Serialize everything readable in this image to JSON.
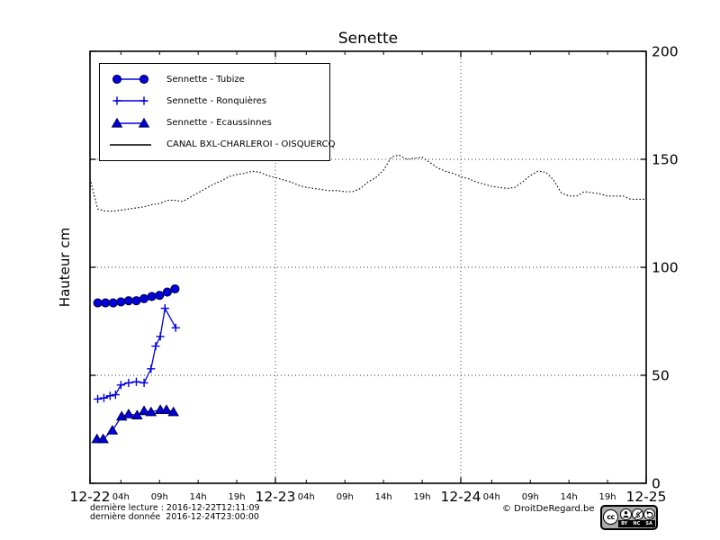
{
  "footer": {
    "line1": "dernière lecture : 2016-12-22T12:11:09",
    "line2": "dernière donnée  2016-12-24T23:00:00",
    "copyright": "© DroitDeRegard.be"
  },
  "license_badge": {
    "cc_label": "cc",
    "nc_symbol": "$",
    "items": [
      "BY",
      "NC",
      "SA"
    ]
  },
  "chart_data": {
    "type": "line",
    "title": "Senette",
    "ylabel": "Hauteur cm",
    "grid": true,
    "legend_position": "upper left",
    "x_axis": {
      "unit": "hours since 2016-12-22 00:00",
      "range_hours": [
        0,
        72
      ],
      "day_labels": [
        "12-22",
        "12-23",
        "12-24",
        "12-25"
      ],
      "day_hours": [
        0,
        24,
        48,
        72
      ],
      "hour_tick_labels": [
        "04h",
        "09h",
        "14h",
        "19h"
      ],
      "hour_tick_offsets": [
        4,
        9,
        14,
        19
      ],
      "grid_hours": [
        24,
        48
      ]
    },
    "y_axis": {
      "range": [
        0,
        200
      ],
      "ticks": [
        0,
        50,
        100,
        150,
        200
      ],
      "gridlines": [
        50,
        100,
        150
      ]
    },
    "series": [
      {
        "name": "Sennette - Tubize",
        "marker": "circle",
        "color": "#0000dd",
        "line_style": "solid",
        "points": [
          [
            1,
            83.5
          ],
          [
            2,
            83.5
          ],
          [
            3,
            83.5
          ],
          [
            4,
            84
          ],
          [
            5,
            84.5
          ],
          [
            6,
            84.5
          ],
          [
            7,
            85.5
          ],
          [
            8,
            86.5
          ],
          [
            9,
            87
          ],
          [
            10,
            88.5
          ],
          [
            11,
            90
          ]
        ]
      },
      {
        "name": "Sennette - Ronquières",
        "marker": "plus",
        "color": "#0000dd",
        "line_style": "solid",
        "points": [
          [
            1,
            39
          ],
          [
            1.8,
            39.5
          ],
          [
            2.6,
            40.5
          ],
          [
            3.3,
            41
          ],
          [
            4,
            45.5
          ],
          [
            5,
            46.5
          ],
          [
            6,
            47
          ],
          [
            7,
            46.5
          ],
          [
            7.9,
            53
          ],
          [
            8.5,
            63.5
          ],
          [
            9.1,
            68
          ],
          [
            9.7,
            81
          ],
          [
            11.1,
            72
          ]
        ]
      },
      {
        "name": "Sennette - Ecaussinnes",
        "marker": "triangle",
        "color": "#0000dd",
        "line_style": "solid",
        "points": [
          [
            0.9,
            20.5
          ],
          [
            1.7,
            20.5
          ],
          [
            2.9,
            24.5
          ],
          [
            4.1,
            31
          ],
          [
            5,
            32
          ],
          [
            6.1,
            31.5
          ],
          [
            7,
            33.5
          ],
          [
            7.9,
            33
          ],
          [
            9.1,
            34
          ],
          [
            9.9,
            34
          ],
          [
            10.8,
            33
          ]
        ]
      },
      {
        "name": "CANAL BXL-CHARLEROI  - OISQUERCQ",
        "marker": "none",
        "color": "#000000",
        "line_style": "dotted",
        "x_start": 0,
        "x_step": 1,
        "values": [
          141,
          127,
          126,
          126,
          126.5,
          127,
          127.5,
          128,
          129,
          129.5,
          131,
          131,
          130.5,
          132.5,
          134.5,
          136.5,
          138.5,
          140,
          142,
          143,
          143.5,
          144.5,
          144,
          142.5,
          141.5,
          140.5,
          139.5,
          138,
          137,
          136.5,
          136,
          135.5,
          135.5,
          135,
          135,
          136.5,
          139.5,
          141.5,
          145,
          151,
          152,
          150,
          150.5,
          151,
          148.5,
          146,
          144.5,
          143.5,
          142,
          141,
          139.5,
          138.5,
          137.5,
          137,
          136.5,
          137,
          139.5,
          142.5,
          144.5,
          144,
          140.5,
          134.5,
          133,
          133,
          135,
          134.5,
          134,
          133,
          133,
          133,
          131.5,
          131.5,
          131.5
        ]
      }
    ]
  }
}
